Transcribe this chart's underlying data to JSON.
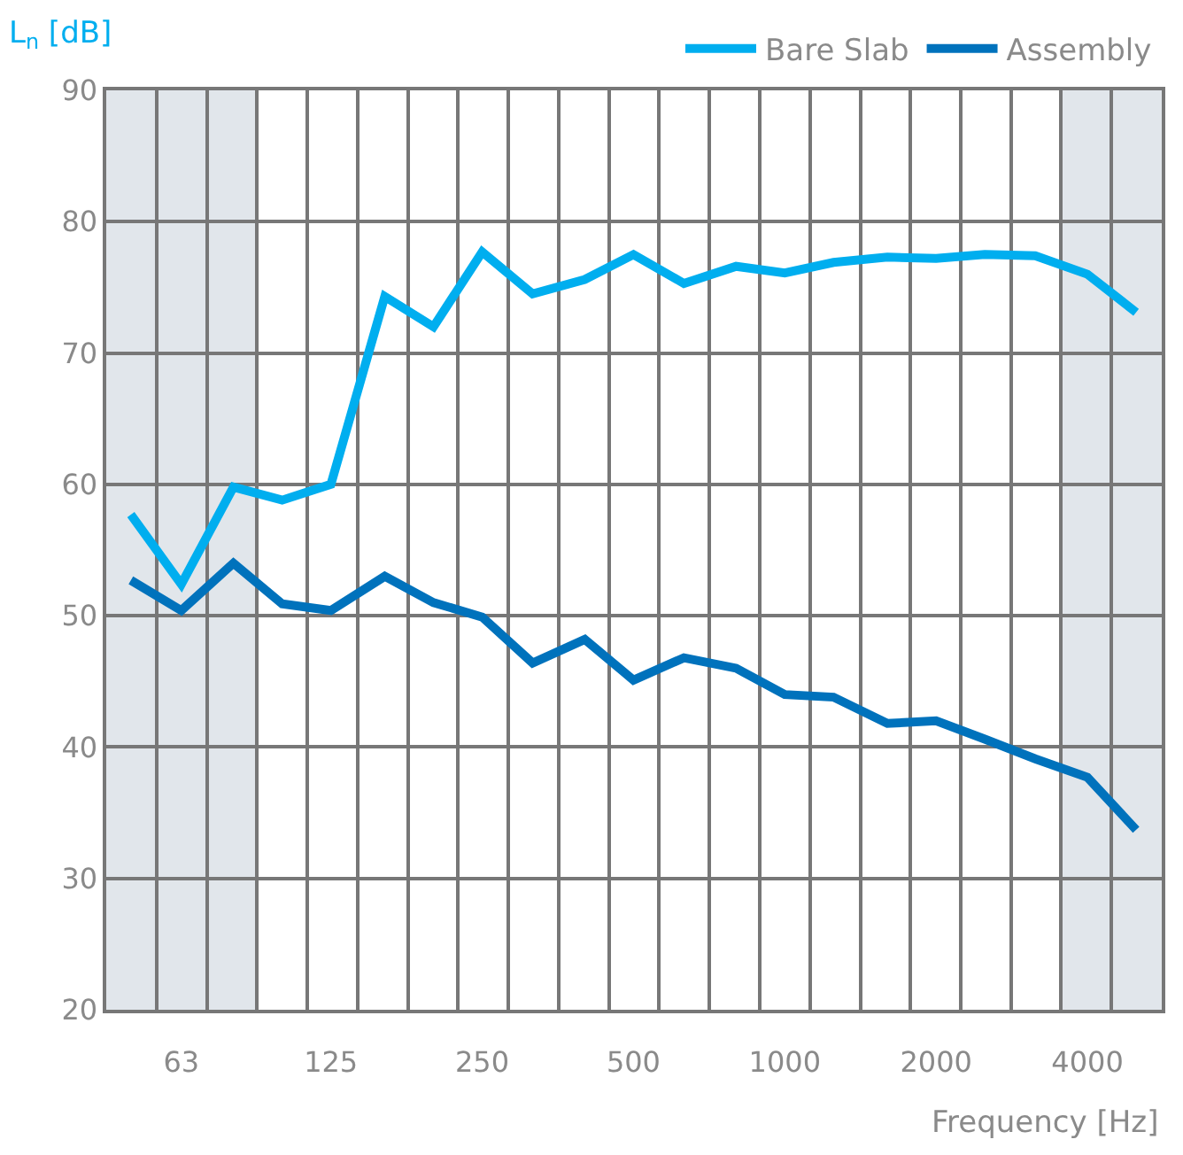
{
  "chart_data": {
    "type": "line",
    "xlabel": "Frequency [Hz]",
    "ylabel": "L$_{n}$ [dB]",
    "x": [
      50,
      63,
      80,
      100,
      125,
      160,
      200,
      250,
      315,
      400,
      500,
      630,
      800,
      1000,
      1250,
      1600,
      2000,
      2500,
      3150,
      4000,
      5000
    ],
    "series": [
      {
        "name": "Bare Slab",
        "color": "#00aeef",
        "values": [
          57.7,
          52.4,
          59.8,
          58.8,
          60.0,
          74.3,
          72.0,
          77.7,
          74.5,
          75.6,
          77.5,
          75.3,
          76.6,
          76.1,
          76.9,
          77.3,
          77.2,
          77.5,
          77.4,
          76.0,
          73.1
        ]
      },
      {
        "name": "Assembly",
        "color": "#0072bc",
        "values": [
          52.7,
          50.4,
          54.0,
          50.9,
          50.4,
          53.0,
          51.0,
          49.9,
          46.4,
          48.2,
          45.1,
          46.8,
          46.0,
          44.0,
          43.8,
          41.8,
          42.0,
          40.6,
          39.1,
          37.7,
          33.7
        ]
      }
    ],
    "log": "x",
    "xlim": [
      44.67,
      5623
    ],
    "xticks": [
      {
        "value": 44.67,
        "label": null
      },
      {
        "value": 56.23,
        "label": null
      },
      63,
      {
        "value": 70.79,
        "label": null
      },
      {
        "value": 89.13,
        "label": null
      },
      {
        "value": 112.2,
        "label": null
      },
      125,
      {
        "value": 141.3,
        "label": null
      },
      {
        "value": 177.8,
        "label": null
      },
      {
        "value": 223.9,
        "label": null
      },
      250,
      {
        "value": 281.8,
        "label": null
      },
      {
        "value": 354.8,
        "label": null
      },
      {
        "value": 446.7,
        "label": null
      },
      500,
      {
        "value": 562.3,
        "label": null
      },
      {
        "value": 707.9,
        "label": null
      },
      {
        "value": 891.3,
        "label": null
      },
      1000,
      {
        "value": 1122,
        "label": null
      },
      {
        "value": 1413,
        "label": null
      },
      {
        "value": 1778,
        "label": null
      },
      2000,
      {
        "value": 2239,
        "label": null
      },
      {
        "value": 2818,
        "label": null
      },
      {
        "value": 3548,
        "label": null
      },
      4000,
      {
        "value": 4467,
        "label": null
      },
      {
        "value": 5623,
        "label": null
      }
    ],
    "ylim": [
      20,
      90
    ],
    "yticks": [
      20,
      30,
      40,
      50,
      60,
      70,
      80,
      90
    ],
    "grid": true,
    "legend": "top right",
    "marker": "none",
    "line_style": "solid",
    "bands": [
      {
        "axis": "x",
        "from": 44.67,
        "to": 89.13,
        "color": "#e1e6eb"
      },
      {
        "axis": "x",
        "from": 3548,
        "to": 5623,
        "color": "#e1e6eb"
      }
    ]
  }
}
